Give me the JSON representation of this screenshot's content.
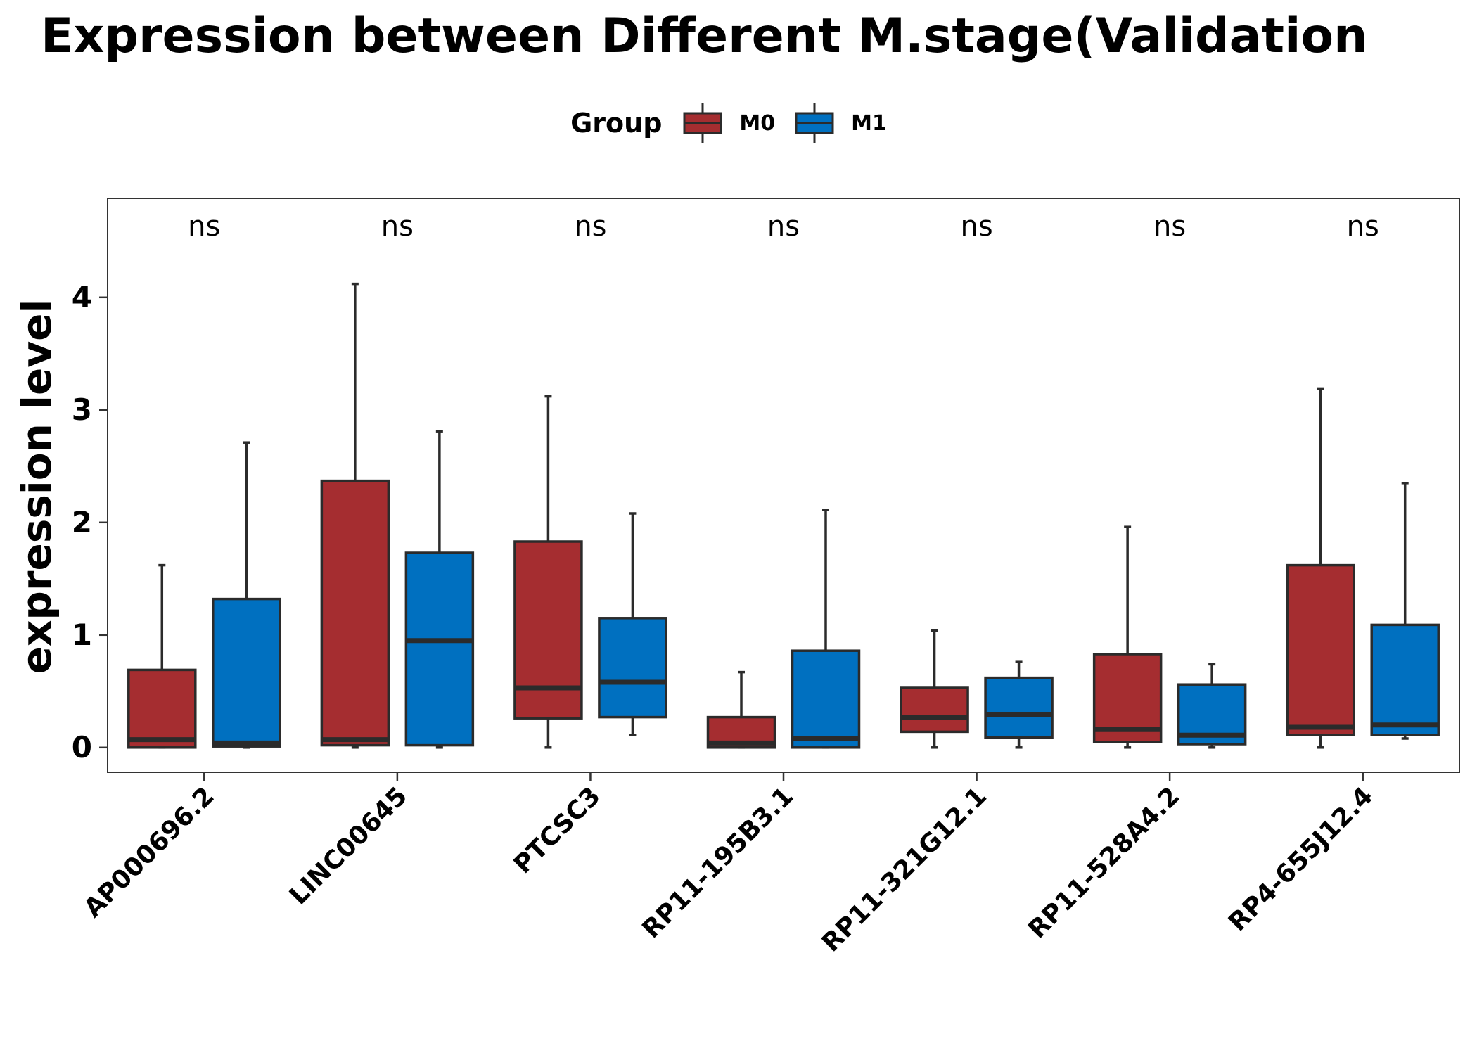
{
  "chart_data": {
    "type": "boxplot",
    "title": "Expression between Different M.stage(Validation",
    "xlabel": "",
    "ylabel": "expression level",
    "ylim": [
      -0.22,
      4.88
    ],
    "yticks": [
      0,
      1,
      2,
      3,
      4
    ],
    "grid": false,
    "legend": {
      "title": "Group",
      "placement": "top-center"
    },
    "categories": [
      "AP000696.2",
      "LINC00645",
      "PTCSC3",
      "RP11-195B3.1",
      "RP11-321G12.1",
      "RP11-528A4.2",
      "RP4-655J12.4"
    ],
    "annotations": [
      "ns",
      "ns",
      "ns",
      "ns",
      "ns",
      "ns",
      "ns"
    ],
    "series": [
      {
        "name": "M0",
        "color": "#A52D30",
        "boxes": [
          {
            "min": 0.0,
            "q1": 0.0,
            "median": 0.07,
            "q3": 0.69,
            "max": 1.62
          },
          {
            "min": 0.0,
            "q1": 0.02,
            "median": 0.07,
            "q3": 2.37,
            "max": 4.12
          },
          {
            "min": 0.0,
            "q1": 0.26,
            "median": 0.53,
            "q3": 1.83,
            "max": 3.12
          },
          {
            "min": 0.0,
            "q1": 0.0,
            "median": 0.04,
            "q3": 0.27,
            "max": 0.67
          },
          {
            "min": 0.0,
            "q1": 0.14,
            "median": 0.27,
            "q3": 0.53,
            "max": 1.04
          },
          {
            "min": 0.0,
            "q1": 0.05,
            "median": 0.16,
            "q3": 0.83,
            "max": 1.96
          },
          {
            "min": 0.0,
            "q1": 0.11,
            "median": 0.18,
            "q3": 1.62,
            "max": 3.19
          }
        ]
      },
      {
        "name": "M1",
        "color": "#0070C0",
        "boxes": [
          {
            "min": 0.0,
            "q1": 0.01,
            "median": 0.04,
            "q3": 1.32,
            "max": 2.71
          },
          {
            "min": 0.0,
            "q1": 0.02,
            "median": 0.95,
            "q3": 1.73,
            "max": 2.81
          },
          {
            "min": 0.11,
            "q1": 0.27,
            "median": 0.58,
            "q3": 1.15,
            "max": 2.08
          },
          {
            "min": 0.0,
            "q1": 0.0,
            "median": 0.08,
            "q3": 0.86,
            "max": 2.11
          },
          {
            "min": 0.0,
            "q1": 0.09,
            "median": 0.29,
            "q3": 0.62,
            "max": 0.76
          },
          {
            "min": 0.0,
            "q1": 0.03,
            "median": 0.11,
            "q3": 0.56,
            "max": 0.74
          },
          {
            "min": 0.08,
            "q1": 0.11,
            "median": 0.2,
            "q3": 1.09,
            "max": 2.35
          }
        ]
      }
    ]
  },
  "style": {
    "stroke_color": "#2B2B2B",
    "axis_color": "#333333"
  }
}
